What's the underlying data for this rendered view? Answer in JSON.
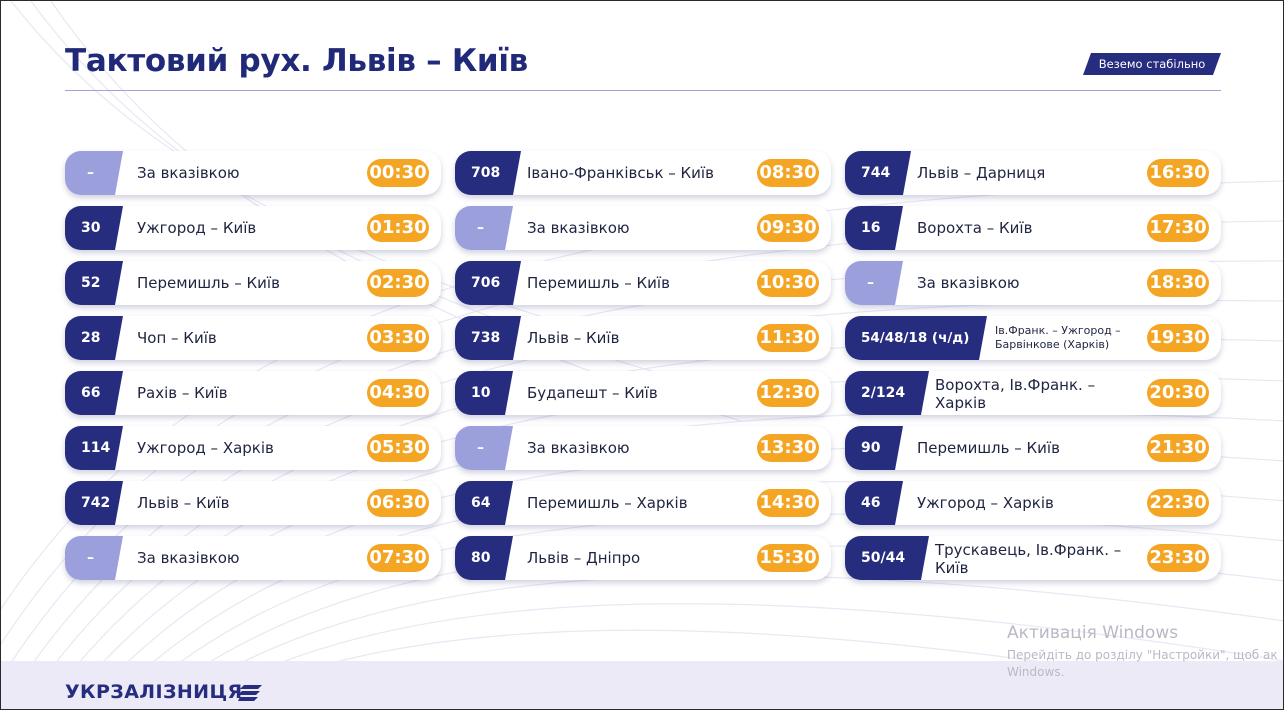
{
  "header": {
    "title": "Тактовий рух. Львів – Київ",
    "tag": "Веземо стабільно"
  },
  "columns": [
    {
      "rows": [
        {
          "number": "–",
          "route": "За вказівкою",
          "time": "00:30"
        },
        {
          "number": "30",
          "route": "Ужгород – Київ",
          "time": "01:30"
        },
        {
          "number": "52",
          "route": "Перемишль – Київ",
          "time": "02:30"
        },
        {
          "number": "28",
          "route": "Чоп – Київ",
          "time": "03:30"
        },
        {
          "number": "66",
          "route": "Рахів – Київ",
          "time": "04:30"
        },
        {
          "number": "114",
          "route": "Ужгород – Харків",
          "time": "05:30"
        },
        {
          "number": "742",
          "route": "Львів – Київ",
          "time": "06:30"
        },
        {
          "number": "–",
          "route": "За вказівкою",
          "time": "07:30"
        }
      ]
    },
    {
      "rows": [
        {
          "number": "708",
          "route": "Івано-Франківськ – Київ",
          "time": "08:30"
        },
        {
          "number": "–",
          "route": "За вказівкою",
          "time": "09:30"
        },
        {
          "number": "706",
          "route": "Перемишль – Київ",
          "time": "10:30"
        },
        {
          "number": "738",
          "route": "Львів – Київ",
          "time": "11:30"
        },
        {
          "number": "10",
          "route": "Будапешт – Київ",
          "time": "12:30"
        },
        {
          "number": "–",
          "route": "За вказівкою",
          "time": "13:30"
        },
        {
          "number": "64",
          "route": "Перемишль – Харків",
          "time": "14:30"
        },
        {
          "number": "80",
          "route": "Львів – Дніпро",
          "time": "15:30"
        }
      ]
    },
    {
      "rows": [
        {
          "number": "744",
          "route": "Львів – Дарниця",
          "time": "16:30"
        },
        {
          "number": "16",
          "route": "Ворохта – Київ",
          "time": "17:30"
        },
        {
          "number": "–",
          "route": "За вказівкою",
          "time": "18:30"
        },
        {
          "number": "54/48/18 (ч/д)",
          "route": "Ів.Франк. – Ужгород – Барвінкове (Харків)",
          "time": "19:30"
        },
        {
          "number": "2/124",
          "route": "Ворохта, Ів.Франк. – Харків",
          "time": "20:30"
        },
        {
          "number": "90",
          "route": "Перемишль – Київ",
          "time": "21:30"
        },
        {
          "number": "46",
          "route": "Ужгород – Харків",
          "time": "22:30"
        },
        {
          "number": "50/44",
          "route": "Трускавець, Ів.Франк. – Київ",
          "time": "23:30"
        }
      ]
    }
  ],
  "footer": {
    "logo": "УКРЗАЛІЗНИЦЯ"
  },
  "watermark": {
    "title": "Активація Windows",
    "text": "Перейдіть до розділу \"Настройки\", щоб ак Windows."
  },
  "colors": {
    "navy": "#262c7e",
    "lavender": "#9b9fdb",
    "orange": "#f5a524"
  },
  "icons": {
    "logo_mark": "uz-stripes-icon"
  }
}
